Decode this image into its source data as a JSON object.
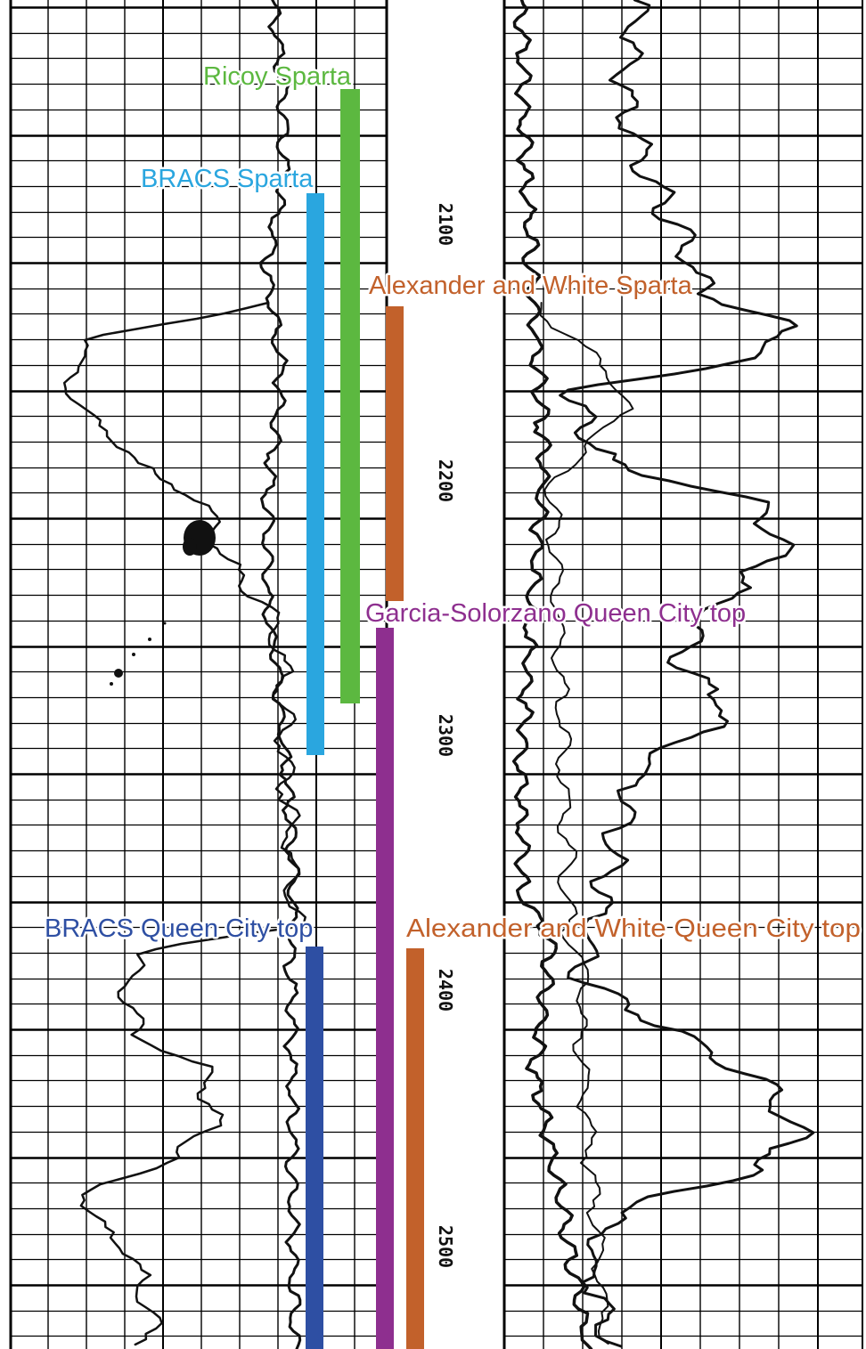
{
  "depth_labels": [
    "2100",
    "2200",
    "2300",
    "2400",
    "2500"
  ],
  "picks": [
    {
      "label": "Ricoy Sparta",
      "color": "#5cb840"
    },
    {
      "label": "BRACS Sparta",
      "color": "#2aa6df"
    },
    {
      "label": "Alexander and White Sparta",
      "color": "#c2612b"
    },
    {
      "label": "Garcia-Solorzano Queen City top",
      "color": "#8e2f8f"
    },
    {
      "label": "BRACS Queen City top",
      "color": "#2e4fa3"
    },
    {
      "label": "Alexander and White Queen City top",
      "color": "#c2612b"
    }
  ],
  "curve_color": "#111111",
  "grid_color": "#000000"
}
